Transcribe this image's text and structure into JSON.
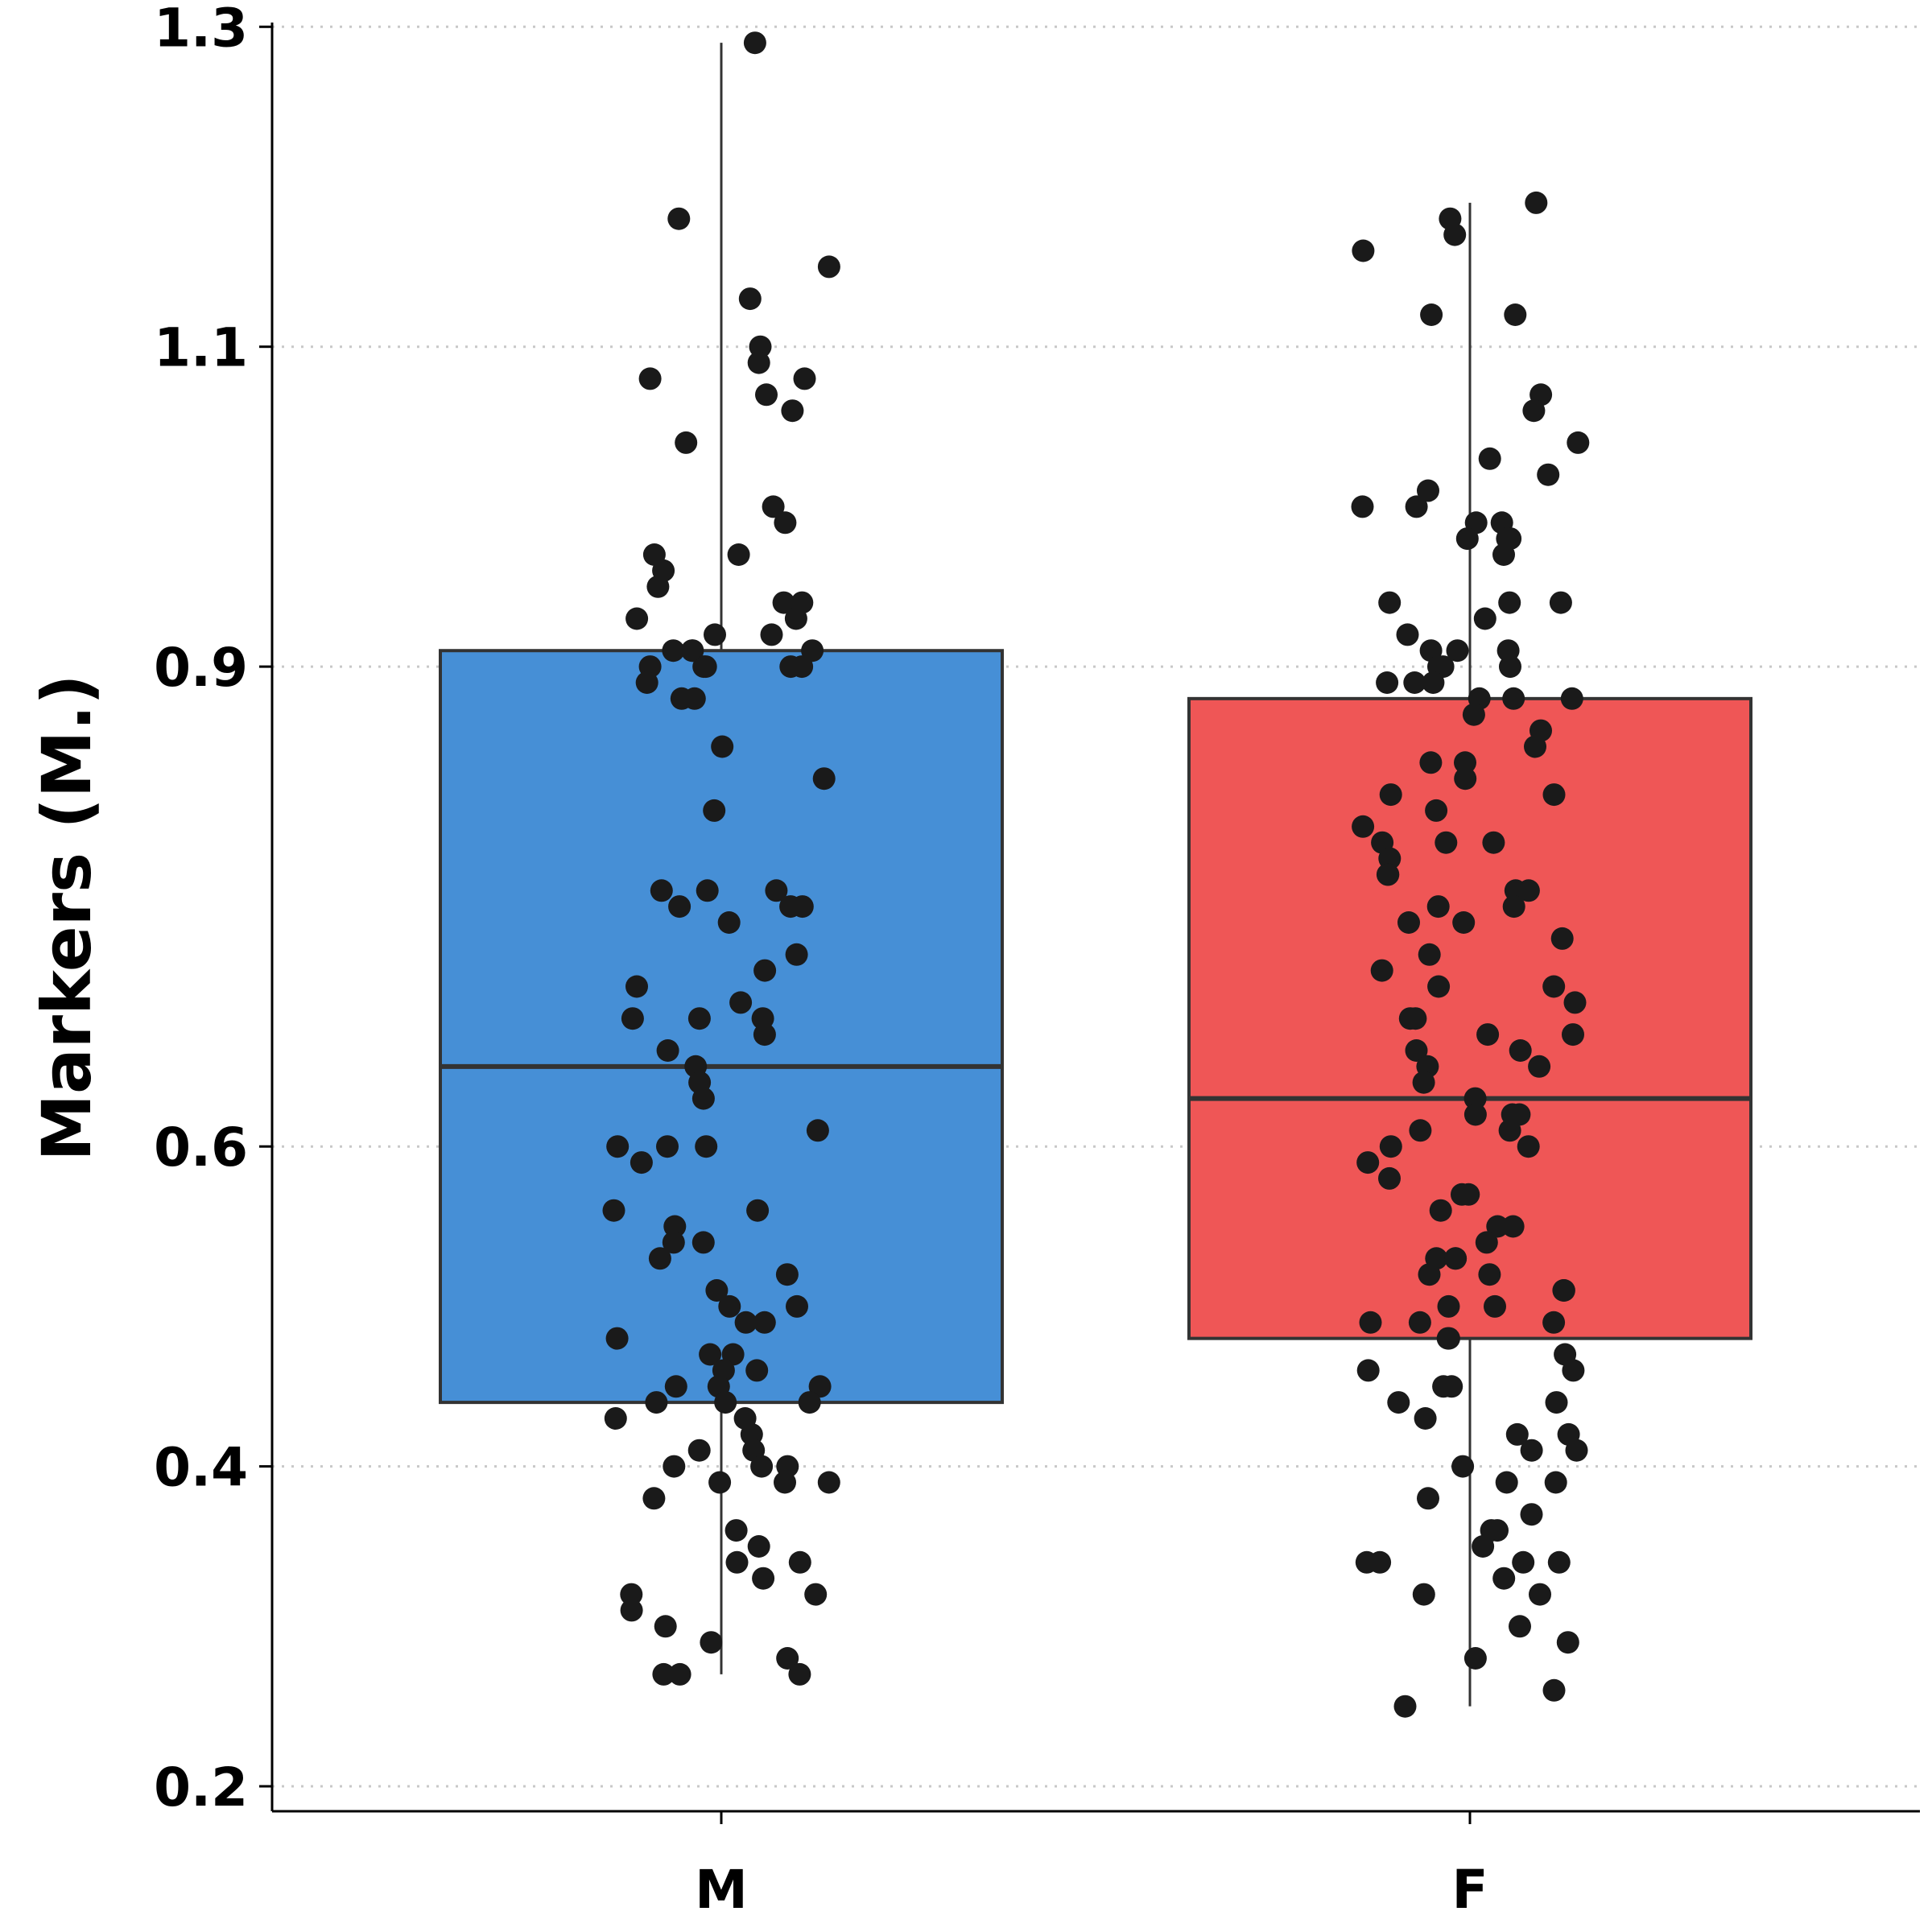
{
  "chart_data": {
    "type": "box",
    "title": "",
    "xlabel": "",
    "ylabel": "Markers (M.)",
    "ylim": [
      0.185,
      1.305
    ],
    "yticks": [
      "0.2",
      "0.4",
      "0.6",
      "0.9",
      "1.1",
      "1.3"
    ],
    "grid": "horizontal-dotted",
    "categories": [
      "M",
      "F"
    ],
    "colors": {
      "M": "#468fd6",
      "F": "#ef5656",
      "points": "#1a1a1a",
      "box_edge": "#333333",
      "grid": "#c8c8c8"
    },
    "boxes": [
      {
        "name": "M",
        "whisker_low": 0.27,
        "q1": 0.44,
        "median": 0.65,
        "q3": 0.91,
        "whisker_high": 1.29
      },
      {
        "name": "F",
        "whisker_low": 0.25,
        "q1": 0.48,
        "median": 0.63,
        "q3": 0.88,
        "whisker_high": 1.19
      }
    ],
    "points": {
      "M": [
        1.29,
        1.18,
        1.13,
        1.15,
        1.1,
        1.09,
        1.08,
        1.08,
        1.07,
        1.06,
        1.0,
        1.04,
        0.99,
        0.97,
        0.97,
        0.96,
        0.95,
        0.94,
        0.94,
        0.93,
        0.93,
        0.92,
        0.92,
        0.91,
        0.91,
        0.91,
        0.91,
        0.9,
        0.9,
        0.9,
        0.9,
        0.9,
        0.89,
        0.88,
        0.88,
        0.85,
        0.83,
        0.81,
        0.76,
        0.76,
        0.76,
        0.75,
        0.75,
        0.75,
        0.74,
        0.72,
        0.71,
        0.7,
        0.69,
        0.68,
        0.68,
        0.68,
        0.67,
        0.66,
        0.65,
        0.64,
        0.63,
        0.61,
        0.6,
        0.6,
        0.6,
        0.59,
        0.56,
        0.56,
        0.55,
        0.54,
        0.54,
        0.53,
        0.52,
        0.51,
        0.5,
        0.5,
        0.49,
        0.49,
        0.48,
        0.47,
        0.47,
        0.46,
        0.46,
        0.45,
        0.45,
        0.45,
        0.44,
        0.44,
        0.44,
        0.43,
        0.43,
        0.42,
        0.41,
        0.41,
        0.4,
        0.4,
        0.4,
        0.39,
        0.39,
        0.39,
        0.38,
        0.36,
        0.35,
        0.34,
        0.34,
        0.33,
        0.32,
        0.32,
        0.31,
        0.3,
        0.29,
        0.28,
        0.27,
        0.27,
        0.27
      ],
      "F": [
        1.19,
        1.18,
        1.17,
        1.16,
        1.12,
        1.12,
        1.07,
        1.06,
        1.04,
        1.03,
        1.02,
        1.01,
        1.0,
        1.0,
        0.99,
        0.99,
        0.98,
        0.98,
        0.98,
        0.97,
        0.94,
        0.94,
        0.94,
        0.93,
        0.92,
        0.91,
        0.91,
        0.91,
        0.9,
        0.9,
        0.9,
        0.89,
        0.89,
        0.89,
        0.88,
        0.88,
        0.88,
        0.87,
        0.86,
        0.85,
        0.84,
        0.84,
        0.83,
        0.82,
        0.82,
        0.81,
        0.8,
        0.79,
        0.79,
        0.79,
        0.78,
        0.77,
        0.77,
        0.76,
        0.76,
        0.75,
        0.75,
        0.74,
        0.74,
        0.73,
        0.72,
        0.71,
        0.7,
        0.7,
        0.69,
        0.68,
        0.68,
        0.67,
        0.67,
        0.66,
        0.66,
        0.65,
        0.65,
        0.64,
        0.63,
        0.62,
        0.62,
        0.62,
        0.61,
        0.61,
        0.6,
        0.6,
        0.59,
        0.58,
        0.57,
        0.57,
        0.56,
        0.55,
        0.55,
        0.54,
        0.53,
        0.53,
        0.53,
        0.52,
        0.52,
        0.51,
        0.51,
        0.5,
        0.5,
        0.49,
        0.49,
        0.49,
        0.48,
        0.48,
        0.47,
        0.46,
        0.46,
        0.45,
        0.45,
        0.44,
        0.44,
        0.43,
        0.42,
        0.42,
        0.41,
        0.41,
        0.4,
        0.39,
        0.39,
        0.38,
        0.37,
        0.36,
        0.36,
        0.35,
        0.34,
        0.34,
        0.34,
        0.34,
        0.33,
        0.32,
        0.32,
        0.3,
        0.29,
        0.28,
        0.26,
        0.25
      ]
    }
  }
}
